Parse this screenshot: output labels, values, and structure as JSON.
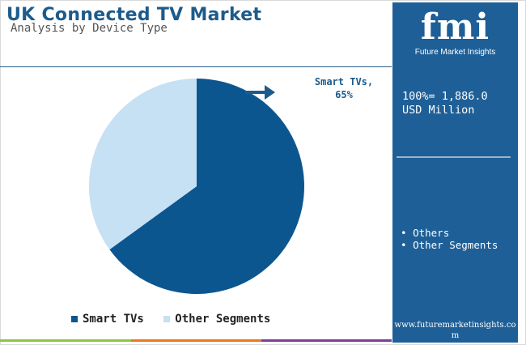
{
  "header": {
    "title": "UK Connected TV Market",
    "subtitle": "Analysis by Device Type"
  },
  "chart_data": {
    "type": "pie",
    "title": "UK Connected TV Market",
    "subtitle": "Analysis by Device Type",
    "slices": [
      {
        "label": "Smart TVs",
        "value": 65,
        "color": "#0c5690"
      },
      {
        "label": "Other Segments",
        "value": 35,
        "color": "#c6e0f4"
      }
    ],
    "callout": {
      "line1": "Smart TVs,",
      "line2": "65%"
    },
    "legend": [
      "Smart TVs",
      "Other Segments"
    ],
    "legend_position": "bottom"
  },
  "panel": {
    "logo_text": "fmi",
    "logo_subtitle": "Future Market Insights",
    "total_line1": "100%= 1,886.0",
    "total_line2": "USD Million",
    "list": [
      "Others",
      "Other Segments"
    ],
    "url": "www.futuremarketinsights.com"
  },
  "colors": {
    "panel_bg": "#1e5f97",
    "title": "#1d5b8c",
    "arrow": "#1d5b8c",
    "bottom_bar": [
      "#8dc63f",
      "#e87722",
      "#7b3f98"
    ]
  }
}
